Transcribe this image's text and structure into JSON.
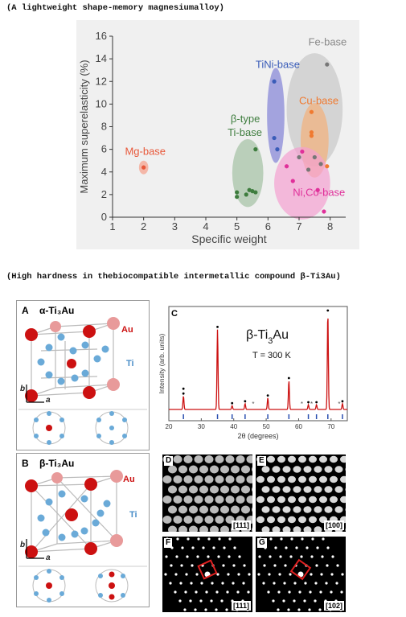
{
  "captions": {
    "top": "(A lightweight shape-memory magnesiumalloy)",
    "bottom": "(High hardness in thebiocompatible intermetallic compound β-Ti3Au)"
  },
  "chart_data": [
    {
      "type": "scatter",
      "title": "",
      "xlabel": "Specific weight",
      "ylabel": "Maximum superelasticity (%)",
      "xlim": [
        1,
        8.5
      ],
      "ylim": [
        0,
        16
      ],
      "xticks": [
        1,
        2,
        3,
        4,
        5,
        6,
        7,
        8
      ],
      "yticks": [
        0,
        2,
        4,
        6,
        8,
        10,
        12,
        14,
        16
      ],
      "grid": false,
      "series": [
        {
          "name": "Mg-base",
          "color": "#e8583a",
          "points": [
            [
              2.0,
              4.4
            ]
          ]
        },
        {
          "name": "β-type Ti-base",
          "color": "#3e7d3e",
          "points": [
            [
              5.0,
              1.8
            ],
            [
              5.0,
              2.2
            ],
            [
              5.3,
              2.0
            ],
            [
              5.4,
              2.4
            ],
            [
              5.5,
              2.3
            ],
            [
              5.6,
              2.2
            ],
            [
              5.6,
              6.0
            ]
          ]
        },
        {
          "name": "TiNi-base",
          "color": "#3a5cb8",
          "points": [
            [
              6.2,
              12.0
            ],
            [
              6.2,
              7.0
            ],
            [
              6.3,
              6.0
            ]
          ]
        },
        {
          "name": "Fe-base",
          "color": "#777777",
          "points": [
            [
              7.9,
              13.5
            ],
            [
              7.3,
              4.2
            ],
            [
              7.5,
              5.3
            ],
            [
              7.7,
              4.7
            ],
            [
              7.0,
              5.3
            ]
          ]
        },
        {
          "name": "Cu-base",
          "color": "#f07a30",
          "points": [
            [
              7.4,
              9.3
            ],
            [
              7.4,
              7.5
            ],
            [
              7.4,
              7.2
            ],
            [
              7.9,
              4.5
            ]
          ]
        },
        {
          "name": "Ni,Co-base",
          "color": "#e0309a",
          "points": [
            [
              6.6,
              4.5
            ],
            [
              6.8,
              3.2
            ],
            [
              7.1,
              5.8
            ],
            [
              7.6,
              2.4
            ],
            [
              7.8,
              0.5
            ]
          ]
        }
      ],
      "labels": [
        "Mg-base",
        "β-type",
        "Ti-base",
        "TiNi-base",
        "Fe-base",
        "Cu-base",
        "Ni,Co-base"
      ]
    },
    {
      "type": "line",
      "panel_letter": "C",
      "title_main": "β-Ti",
      "title_sub": "3",
      "title_end": "Au",
      "annotation": "T = 300 K",
      "xlabel": "2θ (degrees)",
      "ylabel": "Intensity (arb. units)",
      "xlim": [
        20,
        75
      ],
      "xticks": [
        20,
        30,
        40,
        50,
        60,
        70
      ],
      "peaks": [
        {
          "x": 24.5,
          "height": 0.14
        },
        {
          "x": 35.0,
          "height": 0.83
        },
        {
          "x": 39.5,
          "height": 0.04
        },
        {
          "x": 43.5,
          "height": 0.06
        },
        {
          "x": 50.5,
          "height": 0.12
        },
        {
          "x": 57.0,
          "height": 0.3
        },
        {
          "x": 63.0,
          "height": 0.05
        },
        {
          "x": 65.5,
          "height": 0.05
        },
        {
          "x": 69.0,
          "height": 1.0
        },
        {
          "x": 73.5,
          "height": 0.06
        }
      ],
      "ticks_markers": [
        24.5,
        35.0,
        39.5,
        43.5,
        50.5,
        57.0,
        63.0,
        65.5,
        69.0,
        73.5
      ]
    }
  ],
  "panels": {
    "A": {
      "letter": "A",
      "title": "α-Ti₃Au",
      "au": "Au",
      "ti": "Ti",
      "b": "b",
      "a": "a"
    },
    "B": {
      "letter": "B",
      "title": "β-Ti₃Au",
      "au": "Au",
      "ti": "Ti",
      "b": "b",
      "a": "a"
    },
    "D": {
      "letter": "D",
      "label": "[111]"
    },
    "E": {
      "letter": "E",
      "label": "[100]"
    },
    "F": {
      "letter": "F",
      "label": "[111]"
    },
    "G": {
      "letter": "G",
      "label": "[102]"
    }
  },
  "colors": {
    "au_red": "#cc1111",
    "ti_blue": "#6aaad8",
    "fit_red": "#cc1111",
    "tick_blue": "#2a4fb0"
  }
}
